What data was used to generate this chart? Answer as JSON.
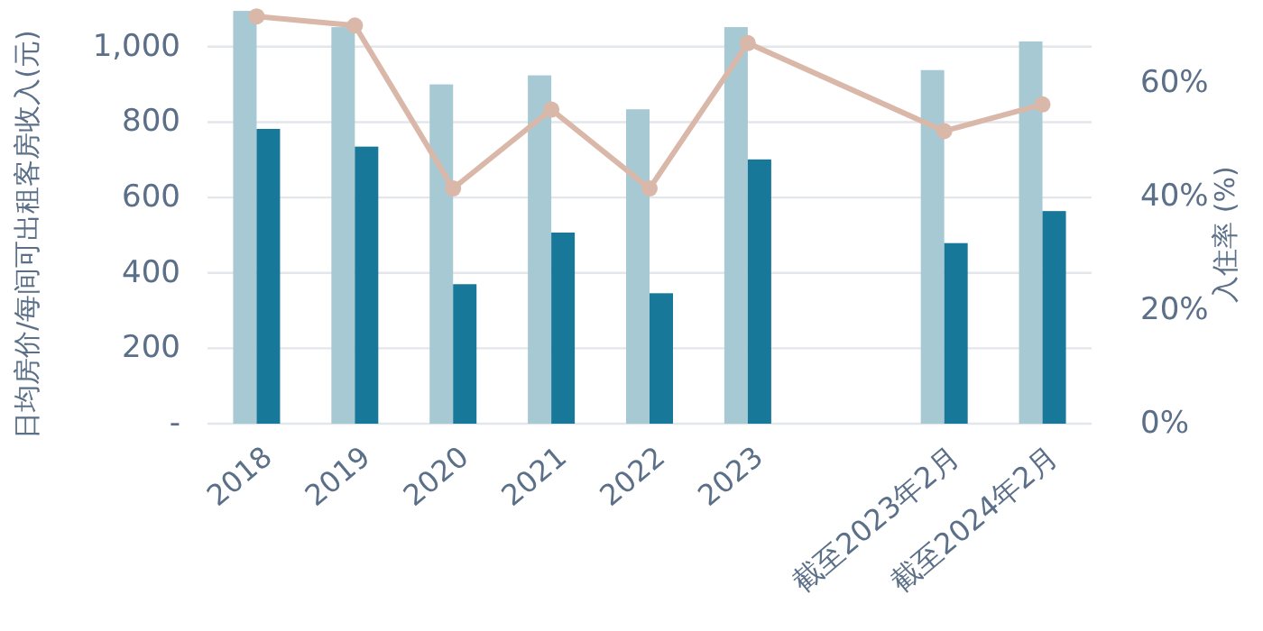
{
  "chart_data": {
    "type": "bar",
    "ylabel": "日均房价/每间可出租客房收入(元)",
    "y2label": "入住率 (%)",
    "categories": [
      "2018",
      "2019",
      "2020",
      "2021",
      "2022",
      "2023",
      null,
      "截至2023年2月",
      "截至2024年2月"
    ],
    "series": [
      {
        "color": "#a7c9d3",
        "values": [
          1095,
          1052,
          900,
          924,
          834,
          1052,
          null,
          938,
          1014
        ]
      },
      {
        "color": "#18789a",
        "values": [
          782,
          735,
          370,
          507,
          346,
          701,
          null,
          479,
          564
        ]
      },
      {
        "type": "line",
        "axis": "y2",
        "color": "#d9b8aa",
        "marker": "circle",
        "values": [
          71.7,
          70.1,
          41.4,
          55.3,
          41.4,
          67.0,
          null,
          51.5,
          56.2
        ]
      }
    ],
    "ylim": [
      0,
      1100
    ],
    "yticks": [
      {
        "value": 0,
        "label": "-"
      },
      200,
      400,
      600,
      800,
      {
        "value": 1000,
        "label": "1,000"
      }
    ],
    "y2lim": [
      0,
      73
    ],
    "y2ticks": [
      {
        "value": 0,
        "label": "0%"
      },
      {
        "value": 20,
        "label": "20%"
      },
      {
        "value": 40,
        "label": "40%"
      },
      {
        "value": 60,
        "label": "60%"
      }
    ],
    "grid": "y"
  }
}
